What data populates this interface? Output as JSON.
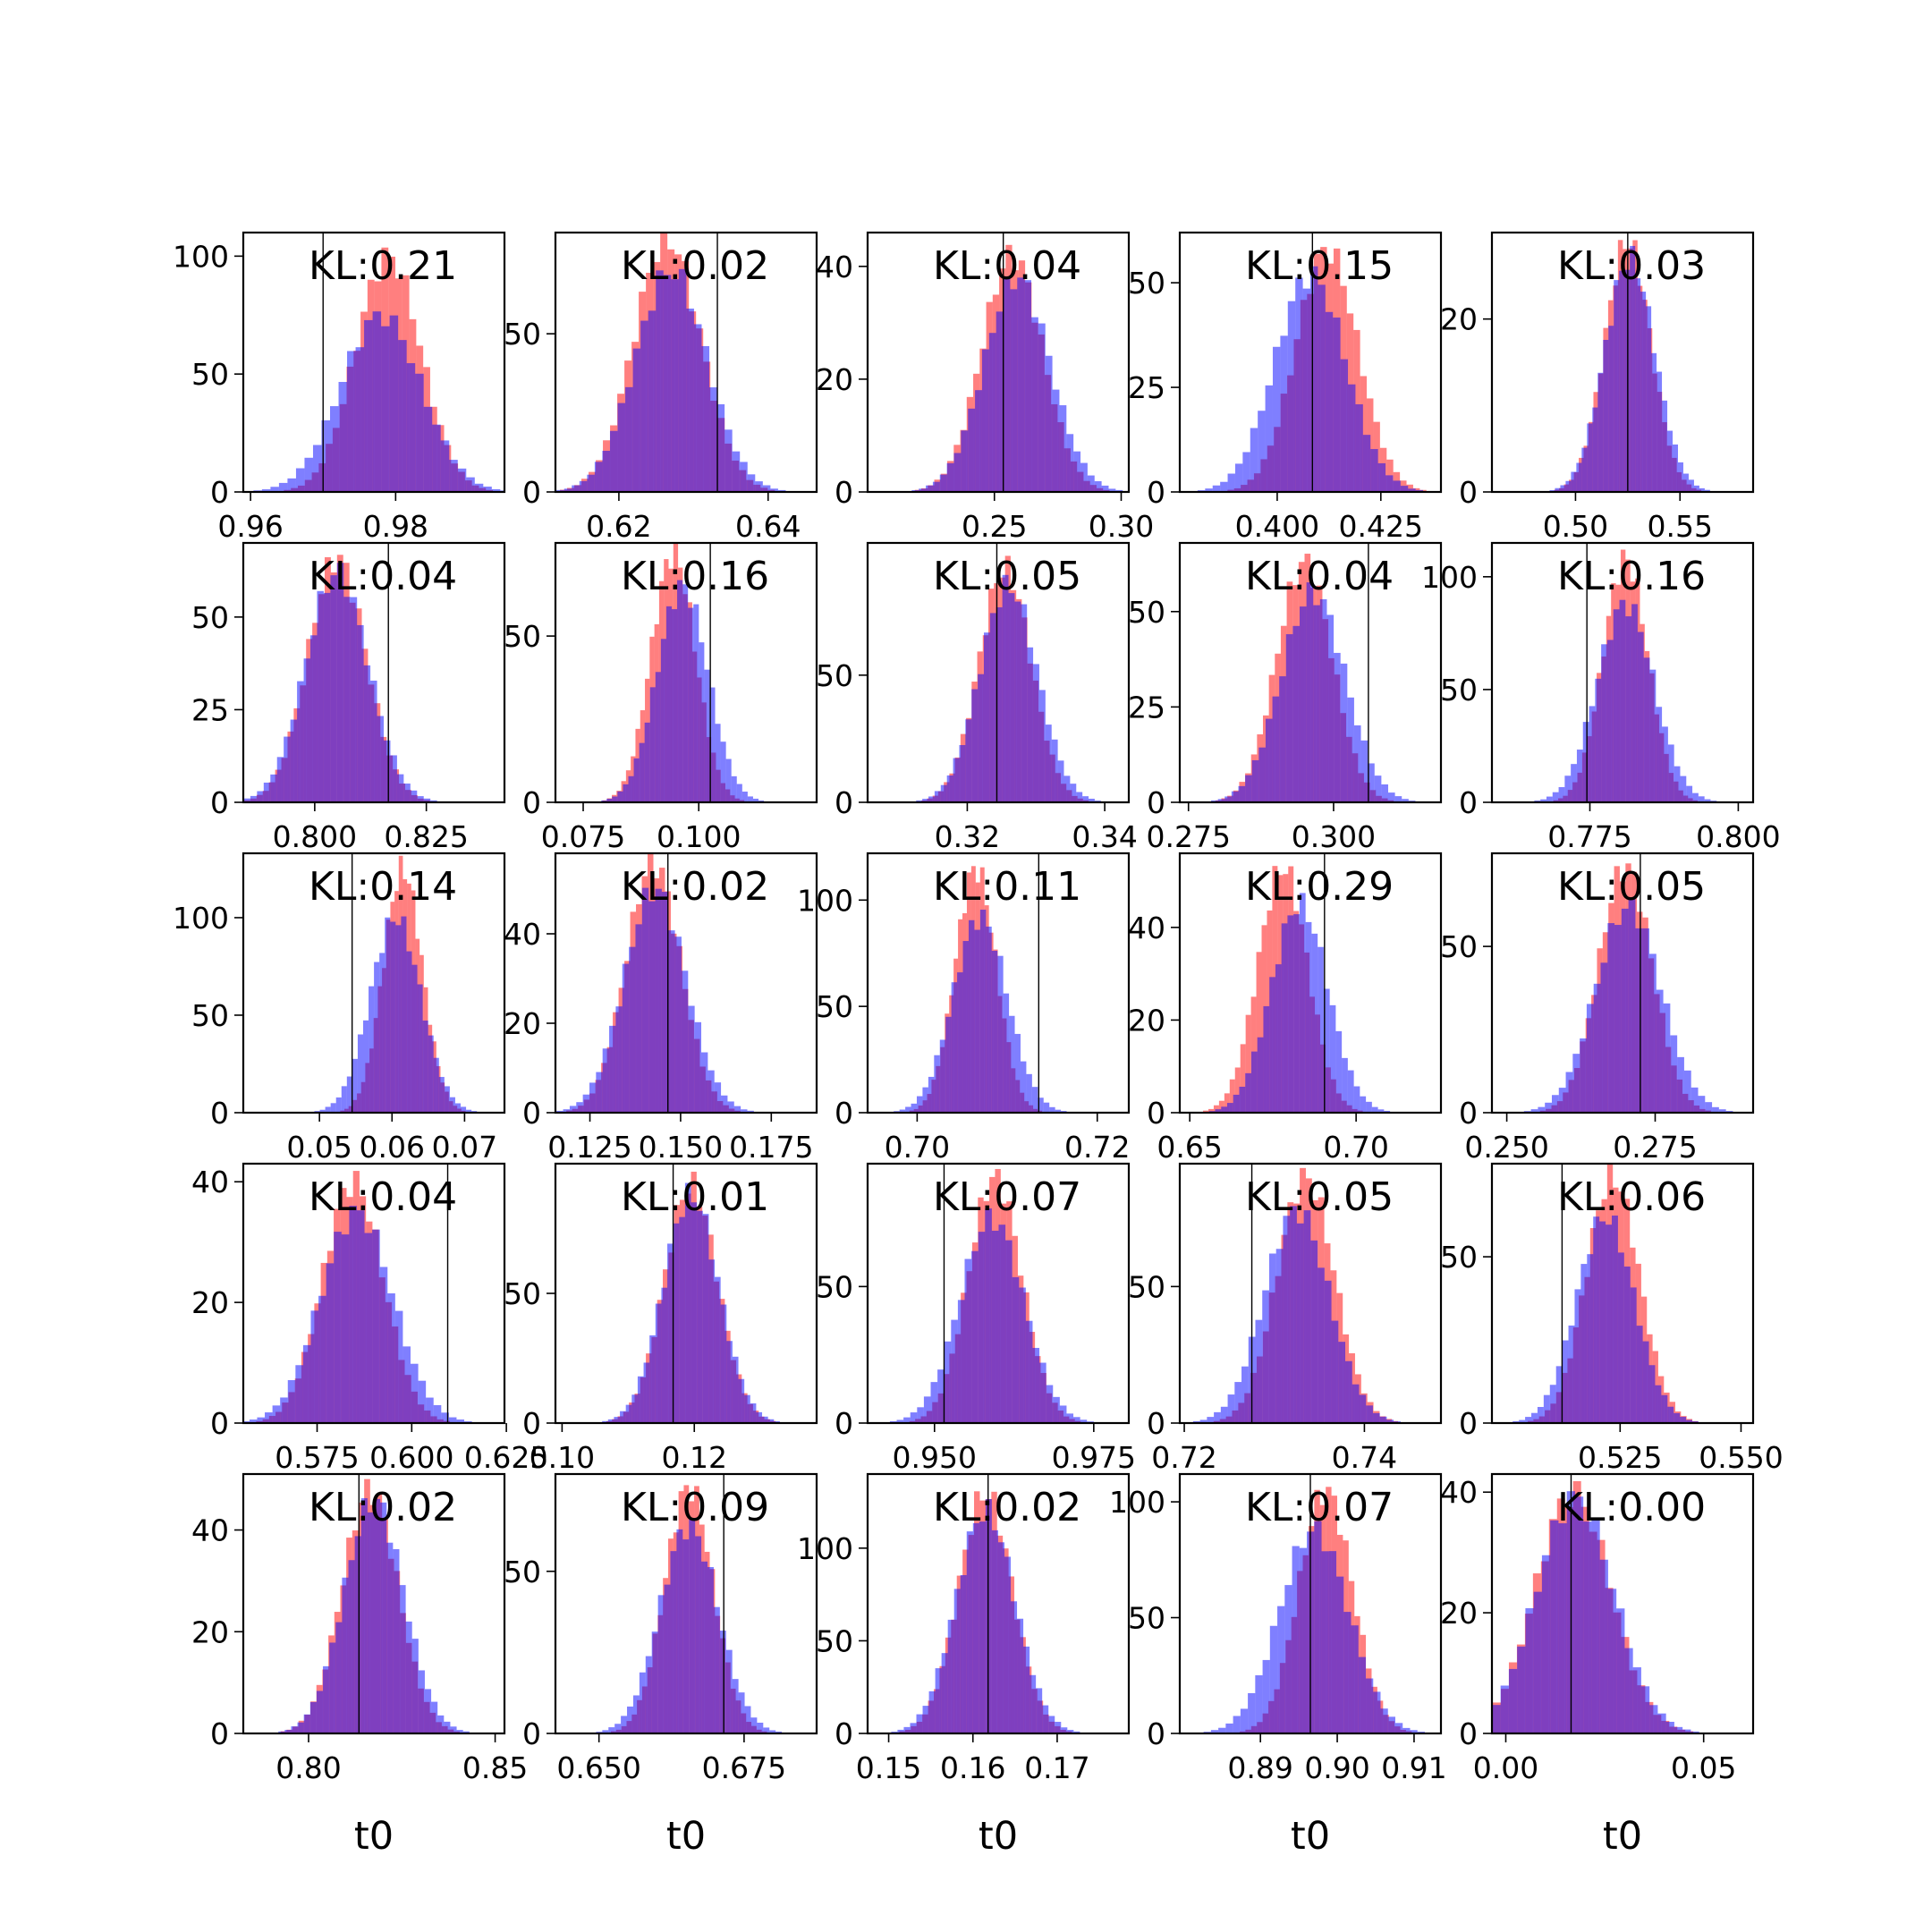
{
  "figure": {
    "xlabel": "t0",
    "series_colors": {
      "red": "#ff0000",
      "blue": "#0000ff"
    }
  },
  "chart_data": [
    {
      "type": "bar",
      "kl_label": "KL:0.21",
      "xlim": [
        0.959,
        0.995
      ],
      "ylim": [
        0,
        110
      ],
      "xticks": [
        0.96,
        0.98
      ],
      "xticklabels": [
        "0.96",
        "0.98"
      ],
      "yticks": [
        0,
        50,
        100
      ],
      "yticklabels": [
        "0",
        "50",
        "100"
      ],
      "truth": 0.97,
      "red": {
        "center": 0.979,
        "sd": 0.0045,
        "peak": 100
      },
      "blue": {
        "center": 0.978,
        "sd": 0.0055,
        "peak": 75
      }
    },
    {
      "type": "bar",
      "kl_label": "KL:0.02",
      "xlim": [
        0.6115,
        0.6465
      ],
      "ylim": [
        0,
        82
      ],
      "xticks": [
        0.62,
        0.64
      ],
      "xticklabels": [
        "0.62",
        "0.64"
      ],
      "yticks": [
        0,
        50
      ],
      "yticklabels": [
        "0",
        "50"
      ],
      "truth": 0.6332,
      "red": {
        "center": 0.6265,
        "sd": 0.0045,
        "peak": 80
      },
      "blue": {
        "center": 0.627,
        "sd": 0.0048,
        "peak": 70
      }
    },
    {
      "type": "bar",
      "kl_label": "KL:0.04",
      "xlim": [
        0.2,
        0.303
      ],
      "ylim": [
        0,
        46
      ],
      "xticks": [
        0.25,
        0.3
      ],
      "xticklabels": [
        "0.25",
        "0.30"
      ],
      "yticks": [
        0,
        20,
        40
      ],
      "yticklabels": [
        "0",
        "20",
        "40"
      ],
      "truth": 0.2535,
      "red": {
        "center": 0.257,
        "sd": 0.012,
        "peak": 42
      },
      "blue": {
        "center": 0.259,
        "sd": 0.013,
        "peak": 38
      }
    },
    {
      "type": "bar",
      "kl_label": "KL:0.15",
      "xlim": [
        0.3765,
        0.4395
      ],
      "ylim": [
        0,
        62
      ],
      "xticks": [
        0.4,
        0.425
      ],
      "xticklabels": [
        "0.400",
        "0.425"
      ],
      "yticks": [
        0,
        25,
        50
      ],
      "yticklabels": [
        "0",
        "25",
        "50"
      ],
      "truth": 0.4085,
      "red": {
        "center": 0.412,
        "sd": 0.0075,
        "peak": 58
      },
      "blue": {
        "center": 0.408,
        "sd": 0.0085,
        "peak": 52
      }
    },
    {
      "type": "bar",
      "kl_label": "KL:0.03",
      "xlim": [
        0.46,
        0.585
      ],
      "ylim": [
        0,
        30
      ],
      "xticks": [
        0.5,
        0.55
      ],
      "xticklabels": [
        "0.50",
        "0.55"
      ],
      "yticks": [
        0,
        20
      ],
      "yticklabels": [
        "0",
        "20"
      ],
      "truth": 0.525,
      "red": {
        "center": 0.525,
        "sd": 0.011,
        "peak": 29
      },
      "blue": {
        "center": 0.526,
        "sd": 0.012,
        "peak": 27
      }
    },
    {
      "type": "bar",
      "kl_label": "KL:0.04",
      "xlim": [
        0.784,
        0.8425
      ],
      "ylim": [
        0,
        70
      ],
      "xticks": [
        0.8,
        0.825
      ],
      "xticklabels": [
        "0.800",
        "0.825"
      ],
      "yticks": [
        0,
        25,
        50
      ],
      "yticklabels": [
        "0",
        "25",
        "50"
      ],
      "truth": 0.8165,
      "red": {
        "center": 0.805,
        "sd": 0.0065,
        "peak": 66
      },
      "blue": {
        "center": 0.805,
        "sd": 0.007,
        "peak": 62
      }
    },
    {
      "type": "bar",
      "kl_label": "KL:0.16",
      "xlim": [
        0.069,
        0.1255
      ],
      "ylim": [
        0,
        78
      ],
      "xticks": [
        0.075,
        0.1
      ],
      "xticklabels": [
        "0.075",
        "0.100"
      ],
      "yticks": [
        0,
        50
      ],
      "yticklabels": [
        "0",
        "50"
      ],
      "truth": 0.1025,
      "red": {
        "center": 0.0945,
        "sd": 0.0048,
        "peak": 75
      },
      "blue": {
        "center": 0.0965,
        "sd": 0.0055,
        "peak": 65
      }
    },
    {
      "type": "bar",
      "kl_label": "KL:0.05",
      "xlim": [
        0.3055,
        0.3435
      ],
      "ylim": [
        0,
        102
      ],
      "xticks": [
        0.32,
        0.34
      ],
      "xticklabels": [
        "0.32",
        "0.34"
      ],
      "yticks": [
        0,
        50
      ],
      "yticklabels": [
        "0",
        "50"
      ],
      "truth": 0.3243,
      "red": {
        "center": 0.3255,
        "sd": 0.0038,
        "peak": 92
      },
      "blue": {
        "center": 0.326,
        "sd": 0.0042,
        "peak": 85
      }
    },
    {
      "type": "bar",
      "kl_label": "KL:0.04",
      "xlim": [
        0.2735,
        0.3185
      ],
      "ylim": [
        0,
        68
      ],
      "xticks": [
        0.275,
        0.3
      ],
      "xticklabels": [
        "0.275",
        "0.300"
      ],
      "yticks": [
        0,
        25,
        50
      ],
      "yticklabels": [
        "0",
        "25",
        "50"
      ],
      "truth": 0.306,
      "red": {
        "center": 0.295,
        "sd": 0.0048,
        "peak": 63
      },
      "blue": {
        "center": 0.2965,
        "sd": 0.0055,
        "peak": 55
      }
    },
    {
      "type": "bar",
      "kl_label": "KL:0.16",
      "xlim": [
        0.7585,
        0.8025
      ],
      "ylim": [
        0,
        115
      ],
      "xticks": [
        0.775,
        0.8
      ],
      "xticklabels": [
        "0.775",
        "0.800"
      ],
      "yticks": [
        0,
        50,
        100
      ],
      "yticklabels": [
        "0",
        "50",
        "100"
      ],
      "truth": 0.7745,
      "red": {
        "center": 0.781,
        "sd": 0.0038,
        "peak": 108
      },
      "blue": {
        "center": 0.781,
        "sd": 0.0048,
        "peak": 88
      }
    },
    {
      "type": "bar",
      "kl_label": "KL:0.14",
      "xlim": [
        0.0395,
        0.0755
      ],
      "ylim": [
        0,
        133
      ],
      "xticks": [
        0.05,
        0.06,
        0.07
      ],
      "xticklabels": [
        "0.05",
        "0.06",
        "0.07"
      ],
      "yticks": [
        0,
        50,
        100
      ],
      "yticklabels": [
        "0",
        "50",
        "100"
      ],
      "truth": 0.0545,
      "red": {
        "center": 0.0615,
        "sd": 0.0027,
        "peak": 125
      },
      "blue": {
        "center": 0.0605,
        "sd": 0.0035,
        "peak": 100
      }
    },
    {
      "type": "bar",
      "kl_label": "KL:0.02",
      "xlim": [
        0.1155,
        0.1875
      ],
      "ylim": [
        0,
        58
      ],
      "xticks": [
        0.125,
        0.15,
        0.175
      ],
      "xticklabels": [
        "0.125",
        "0.150",
        "0.175"
      ],
      "yticks": [
        0,
        20,
        40
      ],
      "yticklabels": [
        "0",
        "20",
        "40"
      ],
      "truth": 0.1465,
      "red": {
        "center": 0.1425,
        "sd": 0.0075,
        "peak": 56
      },
      "blue": {
        "center": 0.143,
        "sd": 0.0085,
        "peak": 50
      }
    },
    {
      "type": "bar",
      "kl_label": "KL:0.11",
      "xlim": [
        0.6945,
        0.7235
      ],
      "ylim": [
        0,
        122
      ],
      "xticks": [
        0.7,
        0.72
      ],
      "xticklabels": [
        "0.70",
        "0.72"
      ],
      "yticks": [
        0,
        50,
        100
      ],
      "yticklabels": [
        "0",
        "50",
        "100"
      ],
      "truth": 0.7135,
      "red": {
        "center": 0.7065,
        "sd": 0.0023,
        "peak": 115
      },
      "blue": {
        "center": 0.707,
        "sd": 0.003,
        "peak": 92
      }
    },
    {
      "type": "bar",
      "kl_label": "KL:0.29",
      "xlim": [
        0.647,
        0.7255
      ],
      "ylim": [
        0,
        56
      ],
      "xticks": [
        0.65,
        0.7
      ],
      "xticklabels": [
        "0.65",
        "0.70"
      ],
      "yticks": [
        0,
        20,
        40
      ],
      "yticklabels": [
        "0",
        "20",
        "40"
      ],
      "truth": 0.6905,
      "red": {
        "center": 0.678,
        "sd": 0.0075,
        "peak": 53
      },
      "blue": {
        "center": 0.683,
        "sd": 0.0085,
        "peak": 45
      }
    },
    {
      "type": "bar",
      "kl_label": "KL:0.05",
      "xlim": [
        0.2475,
        0.2915
      ],
      "ylim": [
        0,
        78
      ],
      "xticks": [
        0.25,
        0.275
      ],
      "xticklabels": [
        "0.250",
        "0.275"
      ],
      "yticks": [
        0,
        50
      ],
      "yticklabels": [
        "0",
        "50"
      ],
      "truth": 0.2725,
      "red": {
        "center": 0.27,
        "sd": 0.0045,
        "peak": 74
      },
      "blue": {
        "center": 0.2705,
        "sd": 0.0055,
        "peak": 62
      }
    },
    {
      "type": "bar",
      "kl_label": "KL:0.04",
      "xlim": [
        0.5555,
        0.6245
      ],
      "ylim": [
        0,
        43
      ],
      "xticks": [
        0.575,
        0.6,
        0.625
      ],
      "xticklabels": [
        "0.575",
        "0.600",
        "0.625"
      ],
      "yticks": [
        0,
        20,
        40
      ],
      "yticklabels": [
        "0",
        "20",
        "40"
      ],
      "truth": 0.6095,
      "red": {
        "center": 0.5845,
        "sd": 0.008,
        "peak": 40
      },
      "blue": {
        "center": 0.5855,
        "sd": 0.0095,
        "peak": 35
      }
    },
    {
      "type": "bar",
      "kl_label": "KL:0.01",
      "xlim": [
        0.099,
        0.1385
      ],
      "ylim": [
        0,
        100
      ],
      "xticks": [
        0.1,
        0.12
      ],
      "xticklabels": [
        "0.10",
        "0.12"
      ],
      "yticks": [
        0,
        50
      ],
      "yticklabels": [
        "0",
        "50"
      ],
      "truth": 0.1168,
      "red": {
        "center": 0.1195,
        "sd": 0.004,
        "peak": 92
      },
      "blue": {
        "center": 0.1195,
        "sd": 0.0042,
        "peak": 88
      }
    },
    {
      "type": "bar",
      "kl_label": "KL:0.07",
      "xlim": [
        0.9395,
        0.9805
      ],
      "ylim": [
        0,
        95
      ],
      "xticks": [
        0.95,
        0.975
      ],
      "xticklabels": [
        "0.950",
        "0.975"
      ],
      "yticks": [
        0,
        50
      ],
      "yticklabels": [
        "0",
        "50"
      ],
      "truth": 0.9515,
      "red": {
        "center": 0.9595,
        "sd": 0.0042,
        "peak": 90
      },
      "blue": {
        "center": 0.959,
        "sd": 0.005,
        "peak": 75
      }
    },
    {
      "type": "bar",
      "kl_label": "KL:0.05",
      "xlim": [
        0.7195,
        0.7485
      ],
      "ylim": [
        0,
        95
      ],
      "xticks": [
        0.72,
        0.74
      ],
      "xticklabels": [
        "0.72",
        "0.74"
      ],
      "yticks": [
        0,
        50
      ],
      "yticklabels": [
        "0",
        "50"
      ],
      "truth": 0.7275,
      "red": {
        "center": 0.7335,
        "sd": 0.0032,
        "peak": 90
      },
      "blue": {
        "center": 0.7325,
        "sd": 0.0036,
        "peak": 78
      }
    },
    {
      "type": "bar",
      "kl_label": "KL:0.06",
      "xlim": [
        0.4985,
        0.5525
      ],
      "ylim": [
        0,
        78
      ],
      "xticks": [
        0.525,
        0.55
      ],
      "xticklabels": [
        "0.525",
        "0.550"
      ],
      "yticks": [
        0,
        50
      ],
      "yticklabels": [
        "0",
        "50"
      ],
      "truth": 0.513,
      "red": {
        "center": 0.5235,
        "sd": 0.0055,
        "peak": 74
      },
      "blue": {
        "center": 0.522,
        "sd": 0.006,
        "peak": 62
      }
    },
    {
      "type": "bar",
      "kl_label": "KL:0.02",
      "xlim": [
        0.7825,
        0.8525
      ],
      "ylim": [
        0,
        51
      ],
      "xticks": [
        0.8,
        0.85
      ],
      "xticklabels": [
        "0.80",
        "0.85"
      ],
      "yticks": [
        0,
        20,
        40
      ],
      "yticklabels": [
        "0",
        "20",
        "40"
      ],
      "truth": 0.8135,
      "red": {
        "center": 0.8165,
        "sd": 0.0075,
        "peak": 48
      },
      "blue": {
        "center": 0.8175,
        "sd": 0.008,
        "peak": 46
      }
    },
    {
      "type": "bar",
      "kl_label": "KL:0.09",
      "xlim": [
        0.6425,
        0.6875
      ],
      "ylim": [
        0,
        80
      ],
      "xticks": [
        0.65,
        0.675
      ],
      "xticklabels": [
        "0.650",
        "0.675"
      ],
      "yticks": [
        0,
        50
      ],
      "yticklabels": [
        "0",
        "50"
      ],
      "truth": 0.6715,
      "red": {
        "center": 0.6655,
        "sd": 0.0042,
        "peak": 76
      },
      "blue": {
        "center": 0.6655,
        "sd": 0.005,
        "peak": 64
      }
    },
    {
      "type": "bar",
      "kl_label": "KL:0.02",
      "xlim": [
        0.1475,
        0.1785
      ],
      "ylim": [
        0,
        140
      ],
      "xticks": [
        0.15,
        0.16,
        0.17
      ],
      "xticklabels": [
        "0.15",
        "0.16",
        "0.17"
      ],
      "yticks": [
        0,
        50,
        100
      ],
      "yticklabels": [
        "0",
        "50",
        "100"
      ],
      "truth": 0.1618,
      "red": {
        "center": 0.1615,
        "sd": 0.0032,
        "peak": 130
      },
      "blue": {
        "center": 0.1615,
        "sd": 0.0035,
        "peak": 120
      }
    },
    {
      "type": "bar",
      "kl_label": "KL:0.07",
      "xlim": [
        0.8795,
        0.9135
      ],
      "ylim": [
        0,
        112
      ],
      "xticks": [
        0.89,
        0.9,
        0.91
      ],
      "xticklabels": [
        "0.89",
        "0.90",
        "0.91"
      ],
      "yticks": [
        0,
        50,
        100
      ],
      "yticklabels": [
        "0",
        "50",
        "100"
      ],
      "truth": 0.8965,
      "red": {
        "center": 0.8985,
        "sd": 0.0035,
        "peak": 105
      },
      "blue": {
        "center": 0.897,
        "sd": 0.0045,
        "peak": 88
      }
    },
    {
      "type": "bar",
      "kl_label": "KL:0.00",
      "xlim": [
        -0.0035,
        0.0625
      ],
      "ylim": [
        0,
        43
      ],
      "xticks": [
        0,
        0.05
      ],
      "xticklabels": [
        "0.00",
        "0.05"
      ],
      "yticks": [
        0,
        20,
        40
      ],
      "yticklabels": [
        "0",
        "20",
        "40"
      ],
      "truth": 0.0165,
      "red": {
        "center": 0.017,
        "sd": 0.0095,
        "peak": 40
      },
      "blue": {
        "center": 0.0175,
        "sd": 0.0098,
        "peak": 39
      }
    }
  ]
}
